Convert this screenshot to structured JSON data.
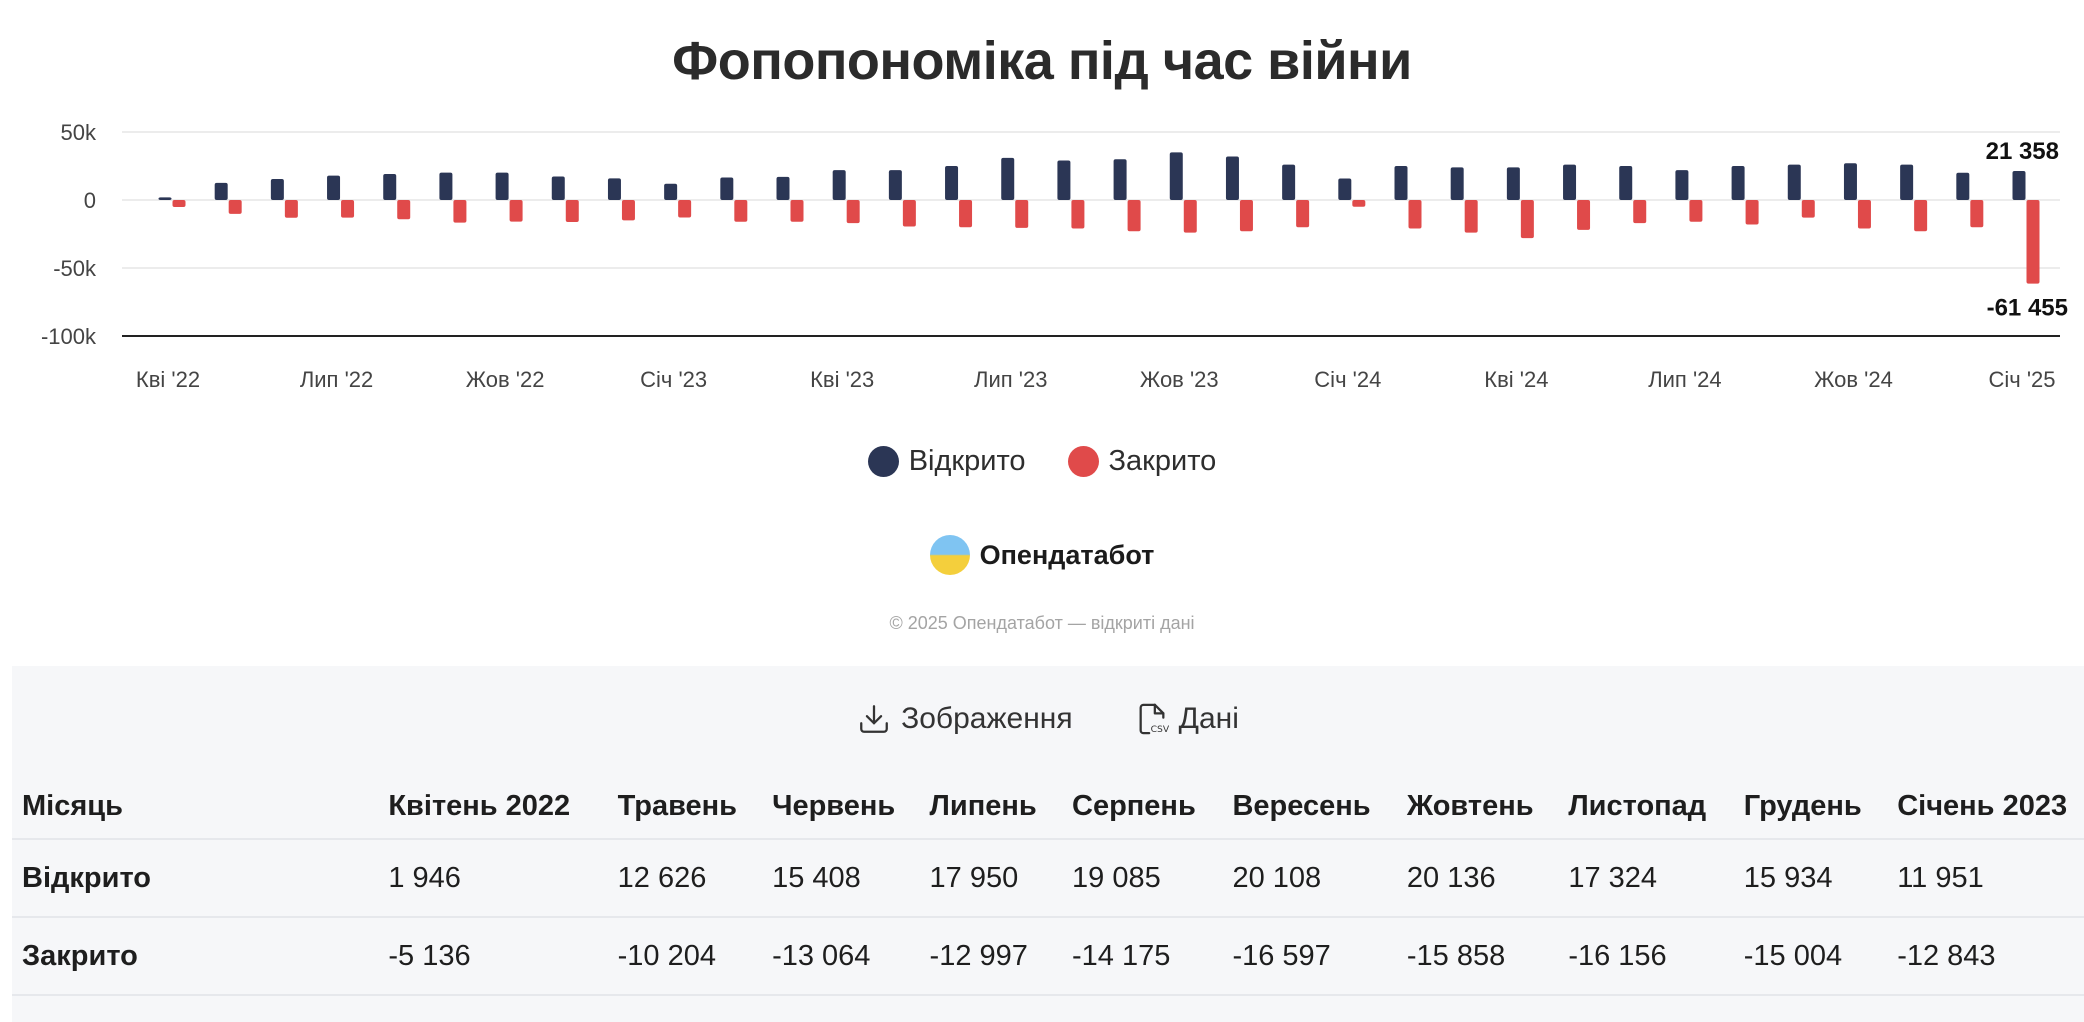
{
  "title": "Фопопономіка під час війни",
  "legend": {
    "opened": "Відкрито",
    "closed": "Закрито"
  },
  "brand": {
    "name": "Опендатабот",
    "copyright": "© 2025 Опендатабот — відкриті дані"
  },
  "actions": {
    "image_label": "Зображення",
    "data_label": "Дані"
  },
  "colors": {
    "opened": "#2b3655",
    "closed": "#e04a4a",
    "grid": "#ececec",
    "axis": "#222222"
  },
  "chart_data": {
    "type": "bar",
    "title": "Фопопономіка під час війни",
    "categories": [
      "2022-04",
      "2022-05",
      "2022-06",
      "2022-07",
      "2022-08",
      "2022-09",
      "2022-10",
      "2022-11",
      "2022-12",
      "2023-01",
      "2023-02",
      "2023-03",
      "2023-04",
      "2023-05",
      "2023-06",
      "2023-07",
      "2023-08",
      "2023-09",
      "2023-10",
      "2023-11",
      "2023-12",
      "2024-01",
      "2024-02",
      "2024-03",
      "2024-04",
      "2024-05",
      "2024-06",
      "2024-07",
      "2024-08",
      "2024-09",
      "2024-10",
      "2024-11",
      "2024-12",
      "2025-01"
    ],
    "x_tick_labels": [
      {
        "index": 0,
        "label": "Кві '22"
      },
      {
        "index": 3,
        "label": "Лип '22"
      },
      {
        "index": 6,
        "label": "Жов '22"
      },
      {
        "index": 9,
        "label": "Січ '23"
      },
      {
        "index": 12,
        "label": "Кві '23"
      },
      {
        "index": 15,
        "label": "Лип '23"
      },
      {
        "index": 18,
        "label": "Жов '23"
      },
      {
        "index": 21,
        "label": "Січ '24"
      },
      {
        "index": 24,
        "label": "Кві '24"
      },
      {
        "index": 27,
        "label": "Лип '24"
      },
      {
        "index": 30,
        "label": "Жов '24"
      },
      {
        "index": 33,
        "label": "Січ '25"
      }
    ],
    "y_ticks": [
      {
        "value": 50000,
        "label": "50k"
      },
      {
        "value": 0,
        "label": "0"
      },
      {
        "value": -50000,
        "label": "-50k"
      },
      {
        "value": -100000,
        "label": "-100k"
      }
    ],
    "ylim": [
      -100000,
      50000
    ],
    "grid": true,
    "series": [
      {
        "name": "Відкрито",
        "values": [
          1946,
          12626,
          15408,
          17950,
          19085,
          20108,
          20136,
          17324,
          15934,
          11951,
          16500,
          17000,
          22000,
          22000,
          25000,
          31000,
          29000,
          30000,
          35000,
          32000,
          26000,
          15800,
          25000,
          24000,
          24000,
          26000,
          25000,
          22000,
          25000,
          26000,
          27000,
          26000,
          20000,
          21358
        ]
      },
      {
        "name": "Закрито",
        "values": [
          -5136,
          -10204,
          -13064,
          -12997,
          -14175,
          -16597,
          -15858,
          -16156,
          -15004,
          -12843,
          -16000,
          -16000,
          -17000,
          -19500,
          -20000,
          -20500,
          -21000,
          -23000,
          -24000,
          -23000,
          -20000,
          -5000,
          -21000,
          -24000,
          -28000,
          -22000,
          -17000,
          -16000,
          -18000,
          -13000,
          -21000,
          -23000,
          -20000,
          -61455
        ]
      }
    ],
    "annotations": [
      {
        "series": "Відкрито",
        "index": 33,
        "label": "21 358"
      },
      {
        "series": "Закрито",
        "index": 33,
        "label": "-61 455"
      }
    ]
  },
  "table": {
    "header_label": "Місяць",
    "months": [
      "Квітень 2022",
      "Травень",
      "Червень",
      "Липень",
      "Серпень",
      "Вересень",
      "Жовтень",
      "Листопад",
      "Грудень",
      "Січень 2023"
    ],
    "rows": [
      {
        "label": "Відкрито",
        "values": [
          "1 946",
          "12 626",
          "15 408",
          "17 950",
          "19 085",
          "20 108",
          "20 136",
          "17 324",
          "15 934",
          "11 951"
        ]
      },
      {
        "label": "Закрито",
        "values": [
          "-5 136",
          "-10 204",
          "-13 064",
          "-12 997",
          "-14 175",
          "-16 597",
          "-15 858",
          "-16 156",
          "-15 004",
          "-12 843"
        ]
      }
    ]
  }
}
